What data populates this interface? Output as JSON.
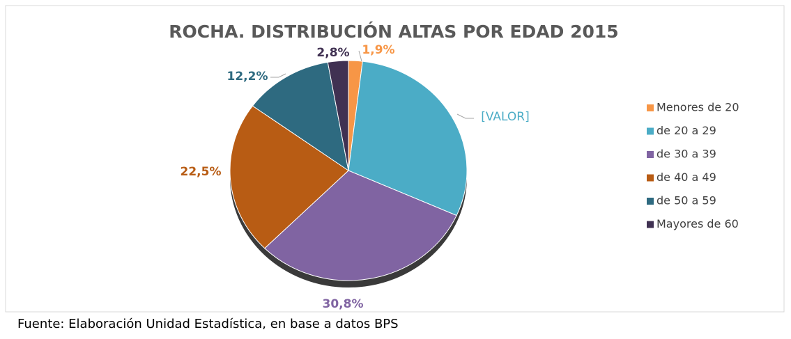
{
  "chart_data": {
    "type": "pie",
    "title": "ROCHA. DISTRIBUCIÓN ALTAS POR EDAD 2015",
    "source": "Fuente: Elaboración Unidad Estadística, en base a datos BPS",
    "categories": [
      "Menores de 20",
      "de 20 a 29",
      "de 30 a 39",
      "de 40 a 49",
      "de 50 a 59",
      "Mayores de 60"
    ],
    "values": [
      1.9,
      29.8,
      30.8,
      22.5,
      12.2,
      2.8
    ],
    "value_labels": [
      "1,9%",
      "[VALOR]",
      "30,8%",
      "22,5%",
      "12,2%",
      "2,8%"
    ],
    "colors": [
      "#f79646",
      "#4bacc6",
      "#8064a2",
      "#b85c14",
      "#2e6a80",
      "#403152"
    ],
    "legend": "right"
  }
}
